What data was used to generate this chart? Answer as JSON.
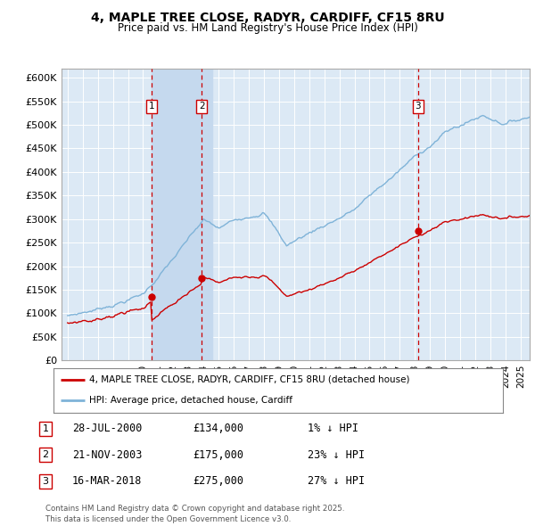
{
  "title": "4, MAPLE TREE CLOSE, RADYR, CARDIFF, CF15 8RU",
  "subtitle": "Price paid vs. HM Land Registry's House Price Index (HPI)",
  "ylim": [
    0,
    620000
  ],
  "yticks": [
    0,
    50000,
    100000,
    150000,
    200000,
    250000,
    300000,
    350000,
    400000,
    450000,
    500000,
    550000,
    600000
  ],
  "ytick_labels": [
    "£0",
    "£50K",
    "£100K",
    "£150K",
    "£200K",
    "£250K",
    "£300K",
    "£350K",
    "£400K",
    "£450K",
    "£500K",
    "£550K",
    "£600K"
  ],
  "xlim_start": 1994.6,
  "xlim_end": 2025.6,
  "sales": [
    {
      "label": "1",
      "date": "28-JUL-2000",
      "price": 134000,
      "year": 2000.55,
      "hpi_pct": "1% ↓ HPI"
    },
    {
      "label": "2",
      "date": "21-NOV-2003",
      "price": 175000,
      "year": 2003.89,
      "hpi_pct": "23% ↓ HPI"
    },
    {
      "label": "3",
      "date": "16-MAR-2018",
      "price": 275000,
      "year": 2018.21,
      "hpi_pct": "27% ↓ HPI"
    }
  ],
  "legend_line1": "4, MAPLE TREE CLOSE, RADYR, CARDIFF, CF15 8RU (detached house)",
  "legend_line2": "HPI: Average price, detached house, Cardiff",
  "footer": "Contains HM Land Registry data © Crown copyright and database right 2025.\nThis data is licensed under the Open Government Licence v3.0.",
  "red_color": "#cc0000",
  "blue_color": "#7fb3d8",
  "plot_bg_color": "#dce9f5",
  "shade_color": "#c5d9ee",
  "grid_color": "#ffffff",
  "background_color": "#ffffff"
}
